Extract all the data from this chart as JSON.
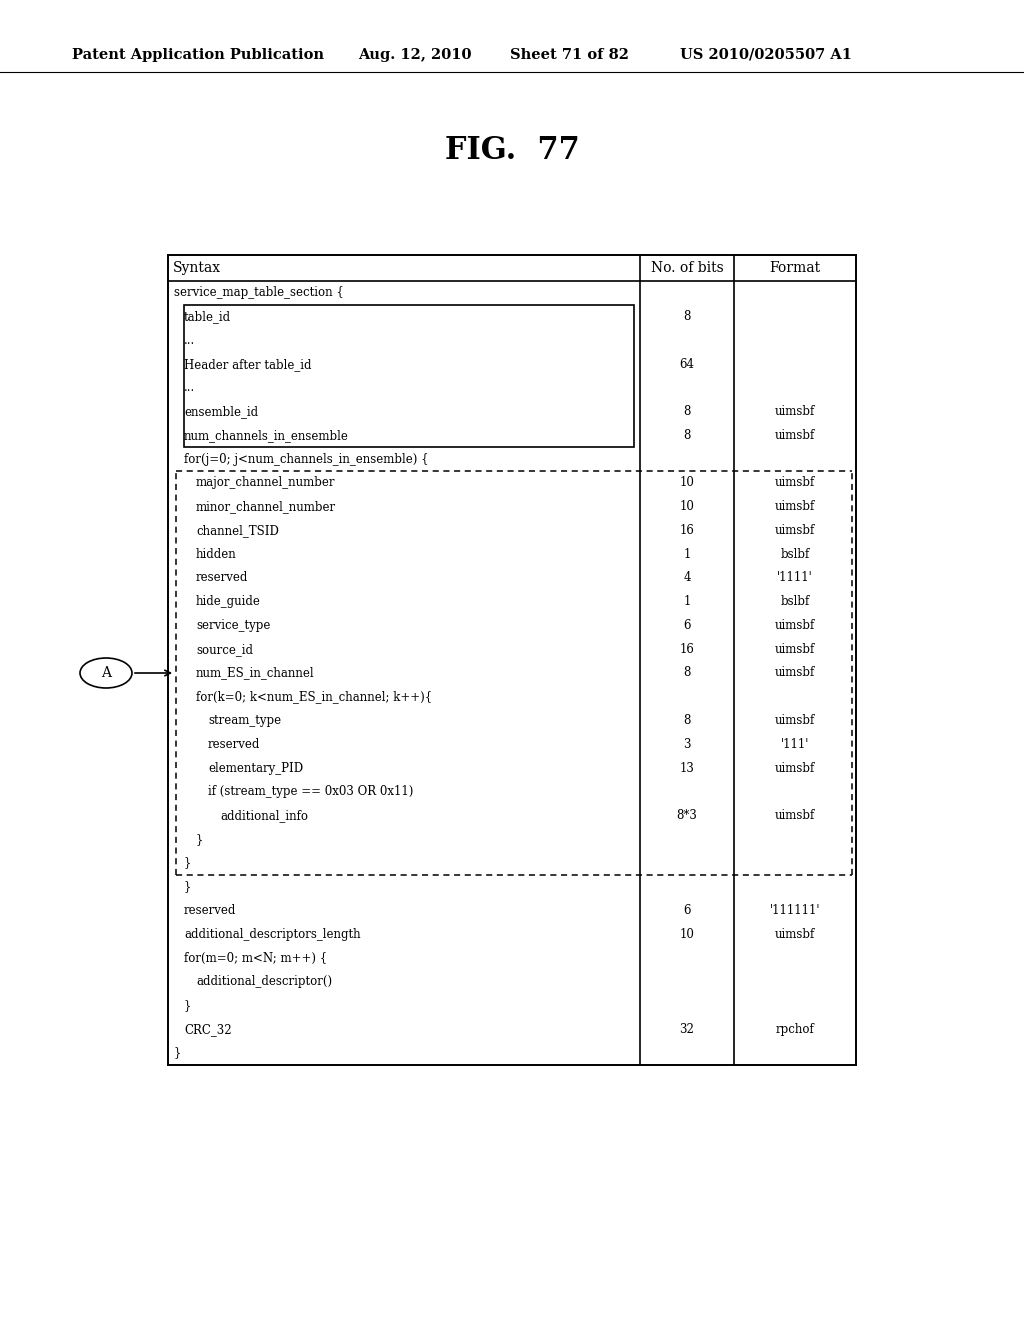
{
  "header_text": "Patent Application Publication",
  "header_date": "Aug. 12, 2010",
  "header_sheet": "Sheet 71 of 82",
  "header_patent": "US 2010/0205507 A1",
  "fig_title": "FIG.  77",
  "table": {
    "col_headers": [
      "Syntax",
      "No. of bits",
      "Format"
    ],
    "rows": [
      {
        "indent": 0,
        "text": "service_map_table_section {",
        "bits": "",
        "format": "",
        "type": "normal"
      },
      {
        "indent": 1,
        "text": "table_id",
        "bits": "8",
        "format": "",
        "type": "box_mid"
      },
      {
        "indent": 1,
        "text": "...",
        "bits": "",
        "format": "",
        "type": "box_mid"
      },
      {
        "indent": 1,
        "text": "Header after table_id",
        "bits": "64",
        "format": "",
        "type": "box_mid"
      },
      {
        "indent": 1,
        "text": "...",
        "bits": "",
        "format": "",
        "type": "box_mid"
      },
      {
        "indent": 1,
        "text": "ensemble_id",
        "bits": "8",
        "format": "uimsbf",
        "type": "box_mid"
      },
      {
        "indent": 1,
        "text": "num_channels_in_ensemble",
        "bits": "8",
        "format": "uimsbf",
        "type": "box_end"
      },
      {
        "indent": 1,
        "text": "for(j=0; j<num_channels_in_ensemble) {",
        "bits": "",
        "format": "",
        "type": "normal"
      },
      {
        "indent": 2,
        "text": "major_channel_number",
        "bits": "10",
        "format": "uimsbf",
        "type": "dashed_mid"
      },
      {
        "indent": 2,
        "text": "minor_channel_number",
        "bits": "10",
        "format": "uimsbf",
        "type": "dashed_mid"
      },
      {
        "indent": 2,
        "text": "channel_TSID",
        "bits": "16",
        "format": "uimsbf",
        "type": "dashed_mid"
      },
      {
        "indent": 2,
        "text": "hidden",
        "bits": "1",
        "format": "bslbf",
        "type": "dashed_mid"
      },
      {
        "indent": 2,
        "text": "reserved",
        "bits": "4",
        "format": "'1111'",
        "type": "dashed_mid"
      },
      {
        "indent": 2,
        "text": "hide_guide",
        "bits": "1",
        "format": "bslbf",
        "type": "dashed_mid"
      },
      {
        "indent": 2,
        "text": "service_type",
        "bits": "6",
        "format": "uimsbf",
        "type": "dashed_mid"
      },
      {
        "indent": 2,
        "text": "source_id",
        "bits": "16",
        "format": "uimsbf",
        "type": "dashed_mid"
      },
      {
        "indent": 2,
        "text": "num_ES_in_channel",
        "bits": "8",
        "format": "uimsbf",
        "type": "dashed_mid"
      },
      {
        "indent": 2,
        "text": "for(k=0; k<num_ES_in_channel; k++){",
        "bits": "",
        "format": "",
        "type": "dashed_mid"
      },
      {
        "indent": 3,
        "text": "stream_type",
        "bits": "8",
        "format": "uimsbf",
        "type": "dashed_mid"
      },
      {
        "indent": 3,
        "text": "reserved",
        "bits": "3",
        "format": "'111'",
        "type": "dashed_mid"
      },
      {
        "indent": 3,
        "text": "elementary_PID",
        "bits": "13",
        "format": "uimsbf",
        "type": "dashed_mid"
      },
      {
        "indent": 3,
        "text": "if (stream_type == 0x03 OR 0x11)",
        "bits": "",
        "format": "",
        "type": "dashed_mid"
      },
      {
        "indent": 4,
        "text": "additional_info",
        "bits": "8*3",
        "format": "uimsbf",
        "type": "dashed_mid"
      },
      {
        "indent": 2,
        "text": "}",
        "bits": "",
        "format": "",
        "type": "dashed_mid"
      },
      {
        "indent": 1,
        "text": "}",
        "bits": "",
        "format": "",
        "type": "dashed_end"
      },
      {
        "indent": 1,
        "text": "}",
        "bits": "",
        "format": "",
        "type": "normal"
      },
      {
        "indent": 1,
        "text": "reserved",
        "bits": "6",
        "format": "'111111'",
        "type": "normal"
      },
      {
        "indent": 1,
        "text": "additional_descriptors_length",
        "bits": "10",
        "format": "uimsbf",
        "type": "normal"
      },
      {
        "indent": 1,
        "text": "for(m=0; m<N; m++) {",
        "bits": "",
        "format": "",
        "type": "normal"
      },
      {
        "indent": 2,
        "text": "additional_descriptor()",
        "bits": "",
        "format": "",
        "type": "normal"
      },
      {
        "indent": 1,
        "text": "}",
        "bits": "",
        "format": "",
        "type": "normal"
      },
      {
        "indent": 1,
        "text": "CRC_32",
        "bits": "32",
        "format": "rpchof",
        "type": "normal"
      },
      {
        "indent": 0,
        "text": "}",
        "bits": "",
        "format": "",
        "type": "normal"
      }
    ]
  },
  "circle_label": "A",
  "background_color": "#ffffff",
  "text_color": "#000000"
}
